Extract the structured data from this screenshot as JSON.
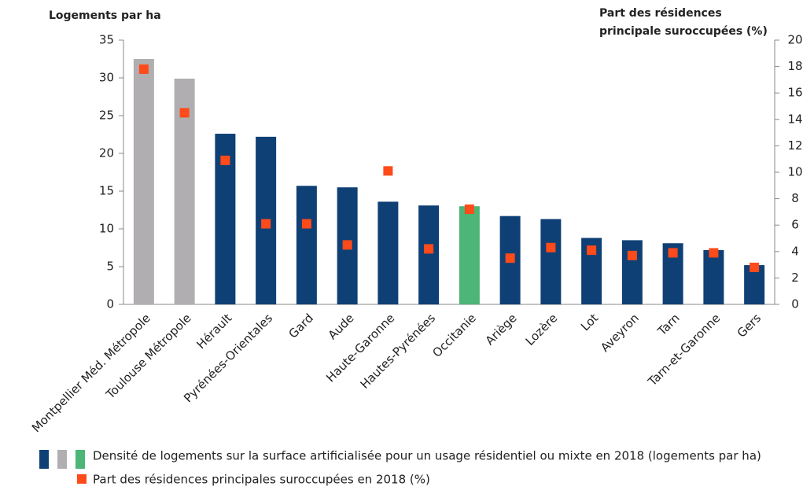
{
  "chart_data": {
    "type": "bar",
    "ylabel": "Logements par ha",
    "y2label": [
      "Part des résidences",
      "principale suroccupées (%)"
    ],
    "categories": [
      "Montpellier Méd. Métropole",
      "Toulouse Métropole",
      "Hérault",
      "Pyrénées-Orientales",
      "Gard",
      "Aude",
      "Haute-Garonne",
      "Hautes-Pyrénées",
      "Occitanie",
      "Ariège",
      "Lozère",
      "Lot",
      "Aveyron",
      "Tarn",
      "Tarn-et-Garonne",
      "Gers"
    ],
    "series": [
      {
        "name": "Densité de logements sur la surface artificialisée pour un usage résidentiel ou mixte en 2018 (logements par ha)",
        "type": "bar",
        "color": "#0f4075",
        "legend_colors": [
          "#0f4075",
          "#b0aeb0",
          "#4cb577"
        ],
        "colors": [
          "#b0aeb0",
          "#b0aeb0",
          "#0f4075",
          "#0f4075",
          "#0f4075",
          "#0f4075",
          "#0f4075",
          "#0f4075",
          "#4cb577",
          "#0f4075",
          "#0f4075",
          "#0f4075",
          "#0f4075",
          "#0f4075",
          "#0f4075",
          "#0f4075"
        ],
        "values": [
          32.5,
          29.9,
          22.6,
          22.2,
          15.7,
          15.5,
          13.6,
          13.1,
          13.0,
          11.7,
          11.3,
          8.8,
          8.5,
          8.1,
          7.2,
          5.2
        ]
      },
      {
        "name": "Part des résidences principales suroccupées en 2018 (%)",
        "type": "scatter",
        "color": "#ff4a1a",
        "axis": "y2",
        "values": [
          17.8,
          14.5,
          10.9,
          6.1,
          6.1,
          4.5,
          10.1,
          4.2,
          7.2,
          3.5,
          4.3,
          4.1,
          3.7,
          3.9,
          3.9,
          2.8
        ]
      }
    ],
    "ylim": [
      0,
      35
    ],
    "yticks": [
      0,
      5,
      10,
      15,
      20,
      25,
      30,
      35
    ],
    "y2lim": [
      0,
      20
    ],
    "y2ticks": [
      0,
      2,
      4,
      6,
      8,
      10,
      12,
      14,
      16,
      18,
      20
    ]
  }
}
